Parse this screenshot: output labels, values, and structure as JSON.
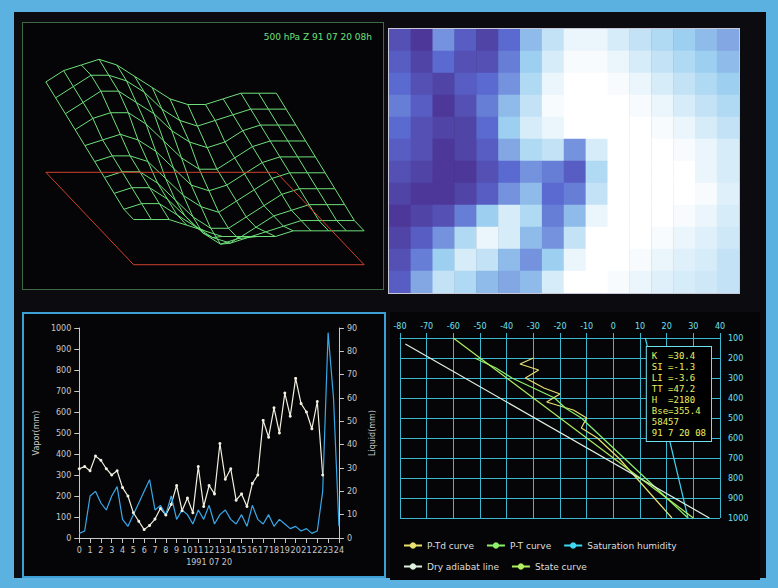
{
  "chart_data": [
    {
      "type": "surface",
      "title": "500 hPa Z 91 07 20 08h",
      "color": "#6ee07a",
      "tick_labels": false,
      "zlim": [
        572,
        592
      ],
      "z": [
        [
          588,
          590,
          591,
          592,
          591,
          589,
          587,
          585,
          584,
          584,
          585,
          586,
          586,
          586
        ],
        [
          587,
          589,
          591,
          591,
          590,
          588,
          585,
          583,
          582,
          583,
          584,
          585,
          585,
          585
        ],
        [
          586,
          588,
          590,
          590,
          588,
          586,
          583,
          581,
          580,
          581,
          583,
          584,
          584,
          584
        ],
        [
          585,
          587,
          588,
          588,
          586,
          583,
          580,
          578,
          578,
          580,
          582,
          583,
          583,
          583
        ],
        [
          584,
          585,
          586,
          585,
          583,
          580,
          577,
          576,
          577,
          579,
          581,
          582,
          582,
          582
        ],
        [
          583,
          584,
          584,
          583,
          580,
          577,
          575,
          574,
          576,
          578,
          580,
          581,
          581,
          581
        ],
        [
          582,
          583,
          583,
          581,
          578,
          575,
          573,
          573,
          575,
          577,
          579,
          580,
          580,
          580
        ],
        [
          581,
          582,
          582,
          580,
          577,
          574,
          572,
          573,
          575,
          577,
          578,
          579,
          579,
          579
        ],
        [
          580,
          581,
          581,
          579,
          577,
          575,
          574,
          575,
          576,
          577,
          578,
          578,
          578,
          578
        ],
        [
          580,
          580,
          580,
          579,
          578,
          577,
          577,
          577,
          577,
          578,
          578,
          578,
          578,
          578
        ]
      ]
    },
    {
      "type": "heatmap",
      "tick_labels": false,
      "color_range": [
        0,
        100
      ],
      "cells": [
        [
          40,
          30,
          60,
          45,
          35,
          50,
          70,
          85,
          95,
          95,
          90,
          85,
          80,
          75,
          70,
          65
        ],
        [
          45,
          35,
          50,
          40,
          40,
          55,
          75,
          90,
          98,
          98,
          95,
          90,
          85,
          80,
          75,
          70
        ],
        [
          50,
          40,
          35,
          45,
          50,
          60,
          80,
          95,
          100,
          100,
          98,
          95,
          90,
          85,
          80,
          75
        ],
        [
          55,
          45,
          30,
          40,
          55,
          70,
          85,
          98,
          100,
          100,
          100,
          98,
          95,
          90,
          85,
          80
        ],
        [
          50,
          40,
          35,
          35,
          50,
          75,
          90,
          95,
          100,
          100,
          100,
          100,
          98,
          95,
          90,
          85
        ],
        [
          45,
          40,
          30,
          35,
          45,
          65,
          80,
          85,
          60,
          90,
          100,
          100,
          100,
          98,
          95,
          90
        ],
        [
          40,
          35,
          30,
          30,
          40,
          50,
          60,
          55,
          45,
          80,
          100,
          100,
          100,
          100,
          95,
          90
        ],
        [
          35,
          30,
          30,
          35,
          45,
          60,
          70,
          50,
          55,
          85,
          100,
          100,
          100,
          100,
          98,
          92
        ],
        [
          30,
          35,
          40,
          55,
          75,
          90,
          80,
          55,
          70,
          95,
          100,
          100,
          100,
          98,
          95,
          90
        ],
        [
          35,
          45,
          60,
          80,
          95,
          90,
          70,
          60,
          85,
          100,
          100,
          100,
          98,
          95,
          92,
          88
        ],
        [
          40,
          55,
          75,
          90,
          85,
          70,
          60,
          75,
          95,
          100,
          100,
          98,
          95,
          92,
          90,
          85
        ],
        [
          45,
          65,
          85,
          80,
          70,
          65,
          70,
          90,
          100,
          100,
          98,
          95,
          92,
          90,
          88,
          85
        ]
      ]
    },
    {
      "type": "line",
      "x_label": "1991 07 20",
      "y_label": "Vapor(mm)",
      "y2_label": "Liquid(mm)",
      "x": [
        0,
        0.5,
        1,
        1.5,
        2,
        2.5,
        3,
        3.5,
        4,
        4.5,
        5,
        5.5,
        6,
        6.5,
        7,
        7.5,
        8,
        8.5,
        9,
        9.5,
        10,
        10.5,
        11,
        11.5,
        12,
        12.5,
        13,
        13.5,
        14,
        14.5,
        15,
        15.5,
        16,
        16.5,
        17,
        17.5,
        18,
        18.5,
        19,
        19.5,
        20,
        20.5,
        21,
        21.5,
        22,
        22.5,
        23,
        23.5,
        24
      ],
      "xlim": [
        0,
        24
      ],
      "xticks": [
        0,
        1,
        2,
        3,
        4,
        5,
        6,
        7,
        8,
        9,
        10,
        11,
        12,
        13,
        14,
        15,
        16,
        17,
        18,
        19,
        20,
        21,
        22,
        23,
        24
      ],
      "ylim": [
        0,
        1000
      ],
      "yticks": [
        0,
        100,
        200,
        300,
        400,
        500,
        600,
        700,
        800,
        900,
        1000
      ],
      "y2lim": [
        0,
        90
      ],
      "y2ticks": [
        0,
        10,
        20,
        30,
        40,
        50,
        60,
        70,
        80,
        90
      ],
      "series": [
        {
          "color": "#f2f0e0",
          "marker": "circle",
          "values": [
            330,
            340,
            320,
            390,
            370,
            330,
            300,
            320,
            240,
            200,
            120,
            80,
            40,
            60,
            90,
            140,
            110,
            160,
            250,
            130,
            190,
            120,
            340,
            150,
            250,
            210,
            450,
            280,
            330,
            180,
            210,
            150,
            260,
            300,
            560,
            480,
            620,
            500,
            690,
            580,
            760,
            640,
            600,
            520,
            650,
            300,
            null,
            null,
            null
          ]
        },
        {
          "color": "#3aa8e8",
          "axis": "y2",
          "marker": "none",
          "values": [
            2,
            3,
            18,
            20,
            15,
            12,
            18,
            22,
            8,
            5,
            10,
            15,
            20,
            25,
            12,
            14,
            10,
            18,
            8,
            12,
            10,
            6,
            12,
            8,
            14,
            6,
            10,
            12,
            8,
            6,
            10,
            5,
            14,
            8,
            6,
            10,
            5,
            8,
            6,
            4,
            5,
            3,
            4,
            2,
            3,
            20,
            88,
            60,
            5
          ]
        }
      ]
    },
    {
      "type": "stuve",
      "grid": true,
      "legend": "bottom",
      "xlim": [
        -80,
        40
      ],
      "xticks": [
        -80,
        -70,
        -60,
        -50,
        -40,
        -30,
        -20,
        -10,
        0,
        10,
        20,
        30,
        40
      ],
      "ylim": [
        100,
        1000
      ],
      "yticks": [
        100,
        200,
        300,
        400,
        500,
        600,
        700,
        800,
        900,
        1000
      ],
      "annotations": [
        "K  =30.4",
        "SI =-1.3",
        "LI =-3.6",
        "TT =47.2",
        "H  =2180",
        "Bse=355.4",
        "58457",
        "91 7 20 08"
      ],
      "series": [
        {
          "name": "P-Td curve",
          "color": "#e8e070",
          "values": [
            [
              -30,
              200
            ],
            [
              -35,
              230
            ],
            [
              -28,
              260
            ],
            [
              -33,
              300
            ],
            [
              -26,
              350
            ],
            [
              -20,
              380
            ],
            [
              -25,
              420
            ],
            [
              -15,
              460
            ],
            [
              -10,
              500
            ],
            [
              -12,
              550
            ],
            [
              -6,
              600
            ],
            [
              -2,
              650
            ],
            [
              2,
              700
            ],
            [
              6,
              760
            ],
            [
              10,
              820
            ],
            [
              14,
              880
            ],
            [
              18,
              940
            ],
            [
              22,
              1000
            ]
          ]
        },
        {
          "name": "P-T curve",
          "color": "#8cf06a",
          "values": [
            [
              -52,
              200
            ],
            [
              -44,
              250
            ],
            [
              -38,
              300
            ],
            [
              -30,
              350
            ],
            [
              -22,
              400
            ],
            [
              -18,
              450
            ],
            [
              -12,
              500
            ],
            [
              -8,
              550
            ],
            [
              -4,
              600
            ],
            [
              0,
              650
            ],
            [
              4,
              700
            ],
            [
              8,
              750
            ],
            [
              12,
              800
            ],
            [
              16,
              850
            ],
            [
              20,
              900
            ],
            [
              24,
              950
            ],
            [
              28,
              1000
            ]
          ]
        },
        {
          "name": "Saturation humidity",
          "color": "#40d8f0",
          "values": [
            [
              12,
              100
            ],
            [
              28,
              1000
            ]
          ]
        },
        {
          "name": "Dry adiabat line",
          "color": "#e0f0e0",
          "values": [
            [
              -78,
              130
            ],
            [
              36,
              1000
            ]
          ]
        },
        {
          "name": "State curve",
          "color": "#b0f060",
          "values": [
            [
              -60,
              100
            ],
            [
              30,
              1000
            ]
          ]
        }
      ]
    }
  ]
}
